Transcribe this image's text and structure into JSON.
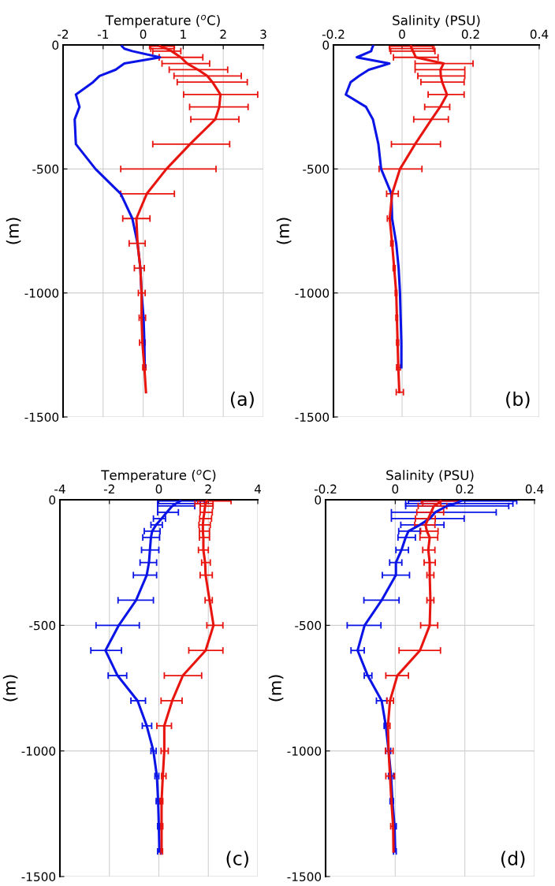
{
  "chart_data": [
    {
      "type": "line",
      "xlabel": "Temperature ($^{o}$C)",
      "ylabel": "(m)",
      "annotations": [
        "(a)"
      ],
      "xlim": [
        -2,
        3
      ],
      "xticks": [
        -2,
        -1,
        0,
        1,
        2,
        3
      ],
      "ylim": [
        -1500,
        0
      ],
      "yticks": [
        -1500,
        -1000,
        -500,
        0
      ],
      "grid": true,
      "series": [
        {
          "color": "#0a14e6",
          "x": [
            -0.53,
            -0.47,
            -0.27,
            0.42,
            -0.47,
            -0.69,
            -1.09,
            -1.25,
            -1.68,
            -1.59,
            -1.71,
            -1.68,
            -1.19,
            -0.56,
            -0.27,
            -0.14,
            -0.07,
            -0.04,
            0.01,
            0.03,
            0.04
          ],
          "values": [
            -5,
            -15,
            -25,
            -50,
            -75,
            -100,
            -125,
            -150,
            -200,
            -250,
            -300,
            -400,
            -500,
            -600,
            -700,
            -800,
            -900,
            -1000,
            -1100,
            -1200,
            -1300
          ]
        },
        {
          "color": "#e8140e",
          "x": [
            0.42,
            0.58,
            0.71,
            0.94,
            1.1,
            1.37,
            1.6,
            1.73,
            1.93,
            1.9,
            1.8,
            1.17,
            0.58,
            0.09,
            -0.17,
            -0.14,
            -0.07,
            -0.04,
            -0.04,
            -0.02,
            0.03,
            0.07
          ],
          "values": [
            -5,
            -15,
            -25,
            -50,
            -75,
            -100,
            -125,
            -150,
            -200,
            -250,
            -300,
            -400,
            -500,
            -600,
            -700,
            -800,
            -900,
            -1000,
            -1100,
            -1200,
            -1300,
            -1400
          ],
          "xerrors": [
            [
              0.16,
              0.78
            ],
            [
              0.19,
              0.77
            ],
            [
              0.24,
              0.94
            ],
            [
              0.4,
              1.49
            ],
            [
              0.47,
              1.66
            ],
            [
              0.65,
              2.11
            ],
            [
              0.77,
              2.45
            ],
            [
              0.85,
              2.6
            ],
            [
              1.01,
              2.86
            ],
            [
              1.16,
              2.62
            ],
            [
              1.19,
              2.39
            ],
            [
              0.24,
              2.16
            ],
            [
              -0.56,
              1.82
            ],
            [
              -0.56,
              0.78
            ],
            [
              -0.51,
              0.17
            ],
            [
              -0.35,
              0.05
            ],
            [
              -0.22,
              0.03
            ],
            [
              -0.12,
              0.05
            ],
            [
              -0.1,
              0.06
            ],
            [
              -0.09,
              0.05
            ],
            [
              -0.01,
              0.07
            ],
            null
          ]
        }
      ]
    },
    {
      "type": "line",
      "xlabel": "Salinity (PSU)",
      "ylabel": "(m)",
      "annotations": [
        "(b)"
      ],
      "xlim": [
        -0.2,
        0.4
      ],
      "xticks": [
        -0.2,
        0,
        0.2,
        0.4
      ],
      "ylim": [
        -1500,
        0
      ],
      "yticks": [
        -1500,
        -1000,
        -500,
        0
      ],
      "grid": true,
      "series": [
        {
          "color": "#0a14e6",
          "x": [
            -0.085,
            -0.088,
            -0.09,
            -0.132,
            -0.037,
            -0.097,
            -0.125,
            -0.15,
            -0.164,
            -0.105,
            -0.085,
            -0.069,
            -0.061,
            -0.031,
            -0.029,
            -0.017,
            -0.01,
            -0.006,
            -0.004,
            -0.002,
            -0.002
          ],
          "values": [
            -5,
            -15,
            -25,
            -50,
            -75,
            -100,
            -125,
            -150,
            -200,
            -250,
            -300,
            -400,
            -500,
            -600,
            -700,
            -800,
            -900,
            -1000,
            -1100,
            -1200,
            -1300
          ]
        },
        {
          "color": "#e8140e",
          "x": [
            0.026,
            0.028,
            0.032,
            0.04,
            0.121,
            0.112,
            0.113,
            0.117,
            0.131,
            0.111,
            0.086,
            0.038,
            -0.006,
            -0.029,
            -0.036,
            -0.029,
            -0.023,
            -0.017,
            -0.015,
            -0.013,
            -0.011,
            -0.008
          ],
          "values": [
            -5,
            -15,
            -25,
            -50,
            -75,
            -100,
            -125,
            -150,
            -200,
            -250,
            -300,
            -400,
            -500,
            -600,
            -700,
            -800,
            -900,
            -1000,
            -1100,
            -1200,
            -1300,
            -1400
          ],
          "xerrors": [
            [
              -0.037,
              0.089
            ],
            [
              -0.036,
              0.093
            ],
            [
              -0.033,
              0.096
            ],
            [
              -0.025,
              0.105
            ],
            [
              0.038,
              0.207
            ],
            [
              0.038,
              0.183
            ],
            [
              0.046,
              0.183
            ],
            [
              0.055,
              0.181
            ],
            [
              0.076,
              0.181
            ],
            [
              0.066,
              0.139
            ],
            [
              0.034,
              0.135
            ],
            [
              -0.031,
              0.112
            ],
            [
              -0.067,
              0.058
            ],
            [
              -0.045,
              -0.011
            ],
            [
              -0.043,
              -0.033
            ],
            [
              -0.033,
              -0.026
            ],
            [
              -0.026,
              -0.02
            ],
            [
              -0.02,
              -0.015
            ],
            [
              -0.018,
              -0.013
            ],
            [
              -0.016,
              -0.01
            ],
            [
              -0.016,
              -0.005
            ],
            [
              -0.017,
              0.004
            ]
          ]
        }
      ]
    },
    {
      "type": "line",
      "xlabel": "Temperature ($^{o}$C)",
      "ylabel": "(m)",
      "annotations": [
        "(c)"
      ],
      "xlim": [
        -4,
        4
      ],
      "xticks": [
        -4,
        -2,
        0,
        2,
        4
      ],
      "ylim": [
        -1500,
        0
      ],
      "yticks": [
        -1500,
        -1000,
        -500,
        0
      ],
      "grid": true,
      "series": [
        {
          "color": "#0a14e6",
          "x": [
            0.86,
            0.7,
            0.54,
            0.32,
            0.11,
            -0.11,
            -0.27,
            -0.32,
            -0.36,
            -0.4,
            -0.49,
            -0.92,
            -1.62,
            -2.16,
            -1.67,
            -0.86,
            -0.49,
            -0.22,
            -0.08,
            -0.03,
            0,
            0.02
          ],
          "values": [
            -5,
            -15,
            -25,
            -50,
            -75,
            -100,
            -125,
            -150,
            -200,
            -250,
            -300,
            -400,
            -500,
            -600,
            -700,
            -800,
            -900,
            -1000,
            -1100,
            -1200,
            -1300,
            -1400
          ],
          "xerrors": [
            [
              -0.05,
              1.84
            ],
            [
              -0.05,
              1.67
            ],
            [
              -0.05,
              1.45
            ],
            [
              -0.05,
              0.79
            ],
            [
              -0.22,
              0.27
            ],
            [
              -0.32,
              0.14
            ],
            [
              -0.59,
              0.05
            ],
            [
              -0.65,
              0.03
            ],
            [
              -0.7,
              0
            ],
            [
              -0.76,
              -0.09
            ],
            [
              -1.03,
              -0.09
            ],
            [
              -1.65,
              -0.22
            ],
            [
              -2.54,
              -0.79
            ],
            [
              -2.75,
              -1.51
            ],
            [
              -2.05,
              -1.3
            ],
            [
              -1.13,
              -0.54
            ],
            [
              -0.67,
              -0.29
            ],
            [
              -0.32,
              -0.11
            ],
            [
              -0.16,
              0
            ],
            [
              -0.11,
              0.05
            ],
            [
              -0.05,
              0.08
            ],
            [
              -0.05,
              0.09
            ]
          ]
        },
        {
          "color": "#e8140e",
          "x": [
            1.94,
            1.89,
            1.87,
            1.84,
            1.8,
            1.78,
            1.78,
            1.8,
            1.8,
            1.87,
            1.89,
            2.05,
            2.21,
            1.89,
            0.97,
            0.54,
            0.22,
            0.22,
            0.16,
            0.11,
            0.11,
            0.11
          ],
          "values": [
            -5,
            -15,
            -25,
            -50,
            -75,
            -100,
            -125,
            -150,
            -200,
            -250,
            -300,
            -400,
            -500,
            -600,
            -700,
            -800,
            -900,
            -1000,
            -1100,
            -1200,
            -1300,
            -1400
          ],
          "xerrors": [
            [
              1.57,
              2.92
            ],
            [
              1.46,
              2.19
            ],
            [
              1.67,
              2.19
            ],
            [
              1.67,
              2.16
            ],
            [
              1.65,
              2.13
            ],
            [
              1.62,
              2.08
            ],
            [
              1.64,
              2.05
            ],
            [
              1.64,
              2.05
            ],
            [
              1.6,
              2.0
            ],
            [
              1.73,
              2.08
            ],
            [
              1.67,
              2.16
            ],
            [
              1.87,
              2.16
            ],
            [
              1.94,
              2.59
            ],
            [
              1.21,
              2.59
            ],
            [
              0.22,
              1.73
            ],
            [
              0.09,
              0.94
            ],
            [
              -0.08,
              0.51
            ],
            [
              0.09,
              0.38
            ],
            [
              0.11,
              0.29
            ],
            [
              0.05,
              0.16
            ],
            [
              0.05,
              0.16
            ],
            [
              0.06,
              0.15
            ]
          ]
        }
      ]
    },
    {
      "type": "line",
      "xlabel": "Salinity (PSU)",
      "ylabel": "(m)",
      "annotations": [
        "(d)"
      ],
      "xlim": [
        -0.2,
        0.4
      ],
      "xticks": [
        -0.2,
        0,
        0.2,
        0.4
      ],
      "ylim": [
        -1500,
        0
      ],
      "yticks": [
        -1500,
        -1000,
        -500,
        0
      ],
      "grid": true,
      "series": [
        {
          "color": "#0a14e6",
          "x": [
            0.188,
            0.172,
            0.148,
            0.115,
            0.099,
            0.071,
            0.038,
            0.03,
            0.018,
            0.002,
            0.002,
            -0.039,
            -0.088,
            -0.108,
            -0.079,
            -0.039,
            -0.027,
            -0.019,
            -0.012,
            -0.008,
            -0.002,
            0
          ],
          "values": [
            -5,
            -15,
            -25,
            -50,
            -75,
            -100,
            -125,
            -150,
            -200,
            -250,
            -300,
            -400,
            -500,
            -600,
            -700,
            -800,
            -900,
            -1000,
            -1100,
            -1200,
            -1300,
            -1400
          ],
          "xerrors": [
            [
              0.038,
              0.349
            ],
            [
              0.03,
              0.338
            ],
            [
              0.03,
              0.326
            ],
            [
              -0.011,
              0.29
            ],
            [
              -0.011,
              0.198
            ],
            [
              0.016,
              0.14
            ],
            [
              0.01,
              0.071
            ],
            [
              0.008,
              0.058
            ],
            [
              0.002,
              0.038
            ],
            [
              -0.016,
              0.019
            ],
            [
              -0.037,
              0.041
            ],
            [
              -0.09,
              0.011
            ],
            [
              -0.138,
              -0.041
            ],
            [
              -0.127,
              -0.089
            ],
            [
              -0.089,
              -0.067
            ],
            [
              -0.054,
              -0.024
            ],
            [
              -0.032,
              -0.021
            ],
            [
              -0.027,
              -0.013
            ],
            [
              -0.019,
              -0.005
            ],
            [
              -0.015,
              -0.005
            ],
            [
              -0.006,
              0.003
            ],
            [
              -0.005,
              0.003
            ]
          ]
        },
        {
          "color": "#e8140e",
          "x": [
            0.13,
            0.123,
            0.111,
            0.103,
            0.095,
            0.087,
            0.091,
            0.099,
            0.095,
            0.099,
            0.099,
            0.101,
            0.099,
            0.071,
            0.006,
            -0.015,
            -0.021,
            -0.019,
            -0.015,
            -0.011,
            -0.006,
            -0.005
          ],
          "values": [
            -5,
            -15,
            -25,
            -50,
            -75,
            -100,
            -125,
            -150,
            -200,
            -250,
            -300,
            -400,
            -500,
            -600,
            -700,
            -800,
            -900,
            -1000,
            -1100,
            -1200,
            -1300,
            -1400
          ],
          "xerrors": [
            [
              0.075,
              0.18
            ],
            [
              0.079,
              0.131
            ],
            [
              0.066,
              0.148
            ],
            [
              0.062,
              0.139
            ],
            [
              0.058,
              0.115
            ],
            [
              0.056,
              0.114
            ],
            [
              0.073,
              0.123
            ],
            [
              0.071,
              0.122
            ],
            [
              0.079,
              0.114
            ],
            [
              0.083,
              0.115
            ],
            [
              0.091,
              0.111
            ],
            [
              0.091,
              0.111
            ],
            [
              0.073,
              0.122
            ],
            [
              0.011,
              0.13
            ],
            [
              -0.027,
              0.038
            ],
            [
              -0.024,
              -0.005
            ],
            [
              -0.025,
              -0.015
            ],
            [
              -0.028,
              -0.006
            ],
            [
              -0.027,
              -0.002
            ],
            null,
            [
              -0.013,
              -0.002
            ],
            null
          ]
        }
      ]
    }
  ]
}
